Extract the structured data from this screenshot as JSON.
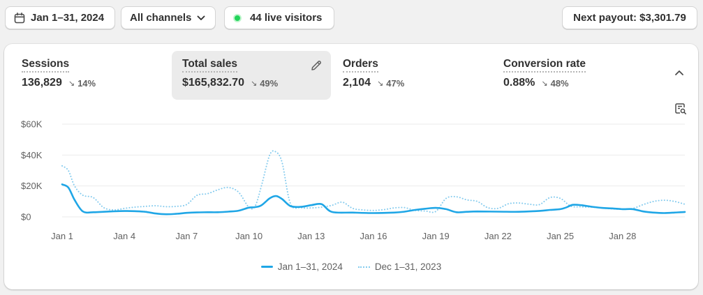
{
  "filters": {
    "date_range": "Jan 1–31, 2024",
    "channels": "All channels",
    "live_visitors": "44 live visitors",
    "payout": "Next payout: $3,301.79"
  },
  "metrics": [
    {
      "title": "Sessions",
      "value": "136,829",
      "change": "14%",
      "direction": "down"
    },
    {
      "title": "Total sales",
      "value": "$165,832.70",
      "change": "49%",
      "direction": "down",
      "active": true
    },
    {
      "title": "Orders",
      "value": "2,104",
      "change": "47%",
      "direction": "down"
    },
    {
      "title": "Conversion rate",
      "value": "0.88%",
      "change": "48%",
      "direction": "down"
    }
  ],
  "icons": {
    "date": "calendar-icon",
    "channels": "chevron-down-icon",
    "live": "live-dot-icon",
    "edit": "pencil-icon",
    "collapse": "chevron-up-icon",
    "settings": "chart-settings-icon"
  },
  "colors": {
    "current": "#1fa6e6",
    "previous": "#84cbee",
    "live": "#22d45a"
  },
  "chart_data": {
    "type": "line",
    "y_ticks": [
      "$60K",
      "$40K",
      "$20K",
      "$0"
    ],
    "y_tick_values": [
      60000,
      40000,
      20000,
      0
    ],
    "ylim": [
      0,
      60000
    ],
    "x_ticks": [
      "Jan 1",
      "Jan 4",
      "Jan 7",
      "Jan 10",
      "Jan 13",
      "Jan 16",
      "Jan 19",
      "Jan 22",
      "Jan 25",
      "Jan 28"
    ],
    "x_tick_days": [
      1,
      4,
      7,
      10,
      13,
      16,
      19,
      22,
      25,
      28
    ],
    "grid": true,
    "legend_position": "bottom-center",
    "series": [
      {
        "name": "Jan 1–31, 2024",
        "style": "solid",
        "days": [
          1,
          1.3,
          1.6,
          2,
          2.5,
          3,
          3.5,
          4,
          4.5,
          5,
          5.5,
          6,
          6.5,
          7,
          7.5,
          8,
          8.5,
          9,
          9.5,
          10,
          10.3,
          10.6,
          11,
          11.3,
          11.6,
          12,
          12.5,
          13,
          13.5,
          14,
          15,
          16,
          17,
          17.5,
          18,
          18.5,
          19,
          19.5,
          20,
          20.5,
          21,
          22,
          23,
          24,
          24.5,
          25,
          25.3,
          25.6,
          26,
          26.5,
          27,
          27.5,
          28,
          28.5,
          29,
          29.5,
          30,
          30.5,
          31
        ],
        "values": [
          21000,
          19000,
          11000,
          3500,
          3000,
          3300,
          3600,
          3800,
          3700,
          3300,
          2200,
          1700,
          2000,
          2600,
          2900,
          3000,
          3000,
          3400,
          4000,
          6000,
          6300,
          7500,
          12000,
          13500,
          11500,
          7000,
          6500,
          7600,
          8200,
          3200,
          2800,
          2500,
          2800,
          3400,
          4500,
          5300,
          5800,
          5000,
          3000,
          3300,
          3500,
          3400,
          3300,
          3900,
          4500,
          5000,
          6200,
          7800,
          7600,
          6600,
          5800,
          5500,
          5000,
          5000,
          3500,
          2800,
          2500,
          2800,
          3200
        ]
      },
      {
        "name": "Dec 1–31, 2023",
        "style": "dotted",
        "days": [
          1,
          1.3,
          1.6,
          2,
          2.5,
          3,
          3.5,
          4,
          4.5,
          5,
          5.5,
          6,
          6.5,
          7,
          7.5,
          8,
          8.5,
          9,
          9.5,
          10,
          10.3,
          10.6,
          11,
          11.3,
          11.6,
          12,
          12.5,
          13,
          13.5,
          14,
          14.5,
          15,
          15.5,
          16,
          16.5,
          17,
          17.5,
          18,
          18.5,
          19,
          19.5,
          20,
          20.5,
          21,
          21.5,
          22,
          22.5,
          23,
          23.5,
          24,
          24.5,
          25,
          25.5,
          26,
          26.5,
          27,
          27.5,
          28,
          28.5,
          29,
          29.5,
          30,
          30.5,
          31
        ],
        "values": [
          33000,
          30000,
          20000,
          14000,
          12500,
          6000,
          4500,
          5500,
          6300,
          6800,
          7200,
          6600,
          6800,
          8000,
          14000,
          15000,
          17500,
          19000,
          16000,
          6200,
          7000,
          20000,
          40000,
          42000,
          35000,
          8500,
          6000,
          5800,
          6300,
          7500,
          9500,
          5500,
          4500,
          4200,
          4700,
          5800,
          6000,
          4200,
          3800,
          3500,
          12000,
          13000,
          11000,
          10000,
          6000,
          5500,
          8500,
          9000,
          8200,
          8000,
          12500,
          12000,
          7000,
          6500,
          6300,
          5800,
          5200,
          5000,
          5500,
          8000,
          10000,
          10800,
          10000,
          8200
        ]
      }
    ]
  }
}
